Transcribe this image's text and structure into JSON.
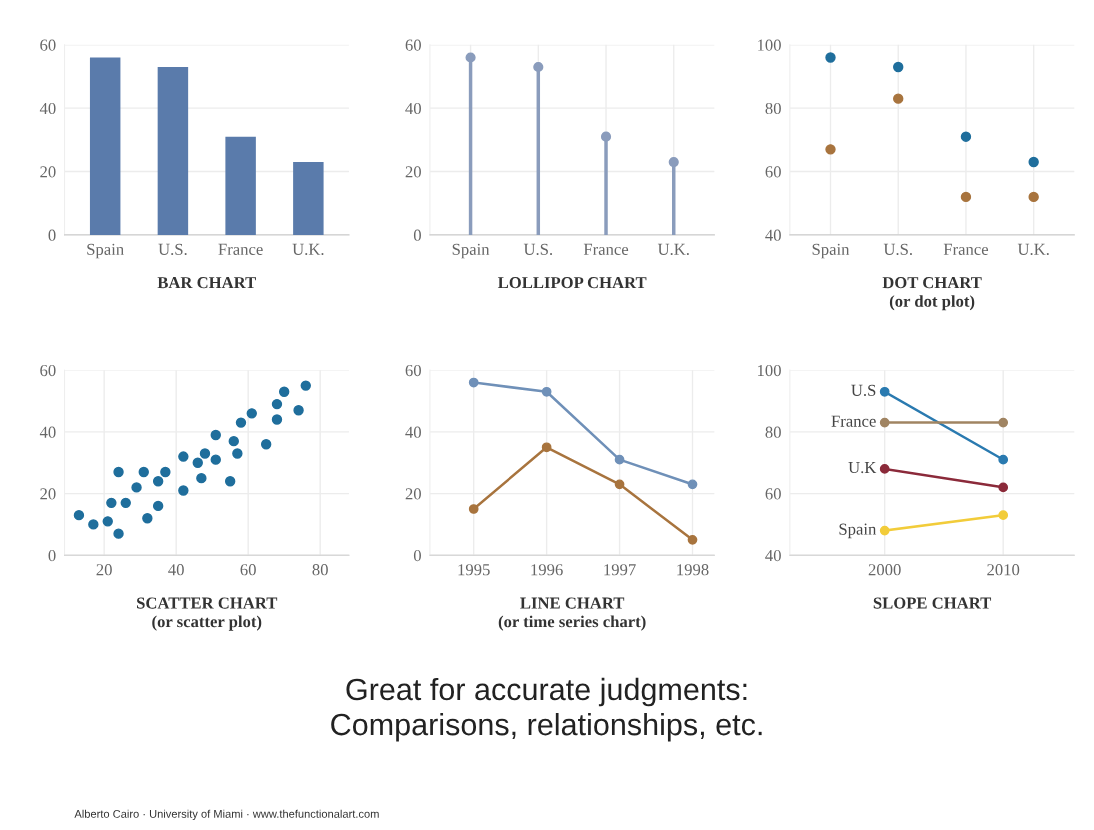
{
  "chart_data": [
    {
      "type": "bar",
      "title": "BAR CHART",
      "categories": [
        "Spain",
        "U.S.",
        "France",
        "U.K."
      ],
      "values": [
        56,
        53,
        31,
        23
      ],
      "color": "#5a7bab",
      "ylim": [
        0,
        60
      ],
      "yticks": [
        0,
        20,
        40,
        60
      ],
      "grid": "y"
    },
    {
      "type": "lollipop",
      "title": "LOLLIPOP CHART",
      "categories": [
        "Spain",
        "U.S.",
        "France",
        "U.K."
      ],
      "values": [
        56,
        53,
        31,
        23
      ],
      "color": "#8a9cbc",
      "ylim": [
        0,
        60
      ],
      "yticks": [
        0,
        20,
        40,
        60
      ],
      "grid": true,
      "marker": "circle"
    },
    {
      "type": "scatter",
      "title": "DOT CHART\n(or dot plot)",
      "categories": [
        "Spain",
        "U.S.",
        "France",
        "U.K."
      ],
      "series": [
        {
          "color": "#1f6e9c",
          "values": [
            96,
            93,
            71,
            63
          ]
        },
        {
          "color": "#a8743e",
          "values": [
            67,
            83,
            52,
            52
          ]
        }
      ],
      "ylim": [
        40,
        100
      ],
      "yticks": [
        40,
        60,
        80,
        100
      ],
      "grid": true,
      "marker": "circle"
    },
    {
      "type": "scatter",
      "title": "SCATTER CHART\n(or scatter plot)",
      "x": [
        13,
        17,
        21,
        22,
        24,
        24,
        26,
        29,
        31,
        32,
        35,
        35,
        37,
        42,
        42,
        46,
        47,
        48,
        51,
        51,
        55,
        56,
        57,
        58,
        61,
        65,
        68,
        68,
        70,
        74,
        76
      ],
      "values": [
        13,
        10,
        11,
        17,
        7,
        27,
        17,
        22,
        27,
        12,
        24,
        16,
        27,
        32,
        21,
        30,
        25,
        33,
        31,
        39,
        24,
        37,
        33,
        43,
        46,
        36,
        49,
        44,
        53,
        47,
        55
      ],
      "color": "#1f6e9c",
      "xlim": [
        9,
        88
      ],
      "xticks": [
        20,
        40,
        60,
        80
      ],
      "ylim": [
        0,
        60
      ],
      "yticks": [
        0,
        20,
        40,
        60
      ],
      "grid": true,
      "marker": "circle"
    },
    {
      "type": "line",
      "title": "LINE CHART\n(or time series chart)",
      "x": [
        1995,
        1996,
        1997,
        1998
      ],
      "series": [
        {
          "color": "#6f90b8",
          "values": [
            56,
            53,
            31,
            23
          ]
        },
        {
          "color": "#a8743e",
          "values": [
            15,
            35,
            23,
            5
          ]
        }
      ],
      "xlim": [
        1994.4,
        1998.3
      ],
      "xticks": [
        1995,
        1996,
        1997,
        1998
      ],
      "ylim": [
        0,
        60
      ],
      "yticks": [
        0,
        20,
        40,
        60
      ],
      "grid": true,
      "marker": "circle"
    },
    {
      "type": "line",
      "title": "SLOPE CHART",
      "x": [
        2000,
        2010
      ],
      "series": [
        {
          "name": "U.S",
          "color": "#2a7ab0",
          "values": [
            93,
            71
          ]
        },
        {
          "name": "France",
          "color": "#a08462",
          "values": [
            83,
            83
          ]
        },
        {
          "name": "U.K",
          "color": "#8b2a3a",
          "values": [
            68,
            62
          ]
        },
        {
          "name": "Spain",
          "color": "#f2cc3a",
          "values": [
            48,
            53
          ]
        }
      ],
      "xlim": [
        1992,
        2016
      ],
      "xticks": [
        2000,
        2010
      ],
      "ylim": [
        40,
        100
      ],
      "yticks": [
        40,
        60,
        80,
        100
      ],
      "grid": true,
      "marker": "circle"
    },
    {
      "type": "other",
      "annotations": [
        "Great for accurate judgments:\nComparisons, relationships, etc.",
        "Alberto Cairo · University of Miami · www.thefunctionalart.com"
      ]
    }
  ]
}
